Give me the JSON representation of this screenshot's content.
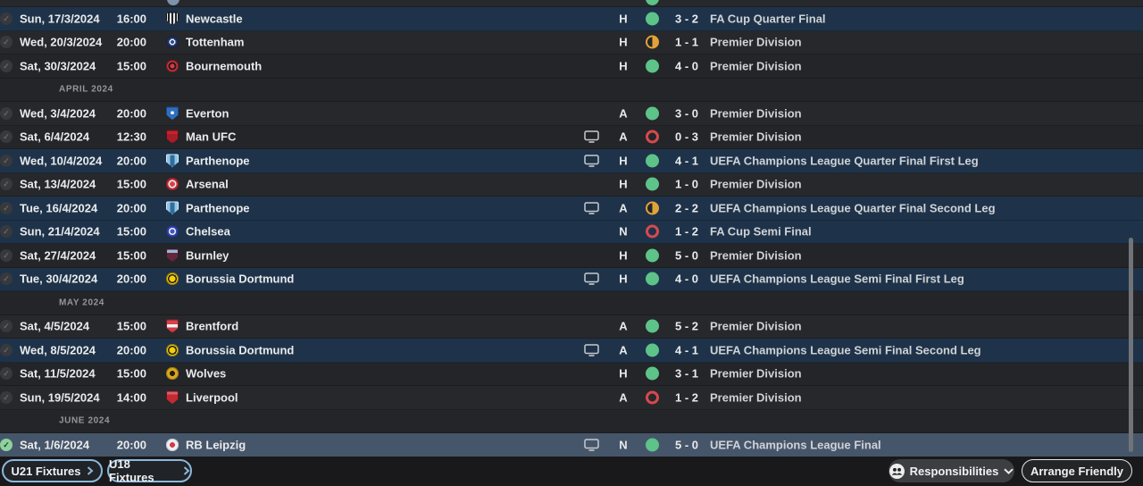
{
  "colors": {
    "win": "#5dc389",
    "draw": "#e2a23b",
    "loss": "#d6494f",
    "highlight_row": "#1e3349",
    "selected_row": "#46566a",
    "accent_blue": "#8cb8da"
  },
  "icons": {
    "check": "✓"
  },
  "fixtures": {
    "rows": [
      {
        "date": "Sun, 17/3/2024",
        "time": "16:00",
        "team": "Newcastle",
        "tv": false,
        "venue": "H",
        "result": "win",
        "score": "3 - 2",
        "competition": "FA Cup Quarter Final",
        "highlight": true,
        "selected": false,
        "check": "grey",
        "badge": {
          "shape": "shield",
          "bg": "repeating-linear-gradient(90deg,#e6e8ea 0 2px,#202226 2px 4px)",
          "border": "#0e0f11"
        }
      },
      {
        "date": "Wed, 20/3/2024",
        "time": "20:00",
        "team": "Tottenham",
        "tv": false,
        "venue": "H",
        "result": "draw",
        "score": "1 - 1",
        "competition": "Premier Division",
        "highlight": false,
        "selected": false,
        "check": "grey",
        "badge": {
          "shape": "circle",
          "bg": "radial-gradient(circle,#2b4fa0 0 2px,#e9edf2 2px 3.5px,#20315e 3.5px)",
          "border": "#16213d"
        }
      },
      {
        "date": "Sat, 30/3/2024",
        "time": "15:00",
        "team": "Bournemouth",
        "tv": false,
        "venue": "H",
        "result": "win",
        "score": "4 - 0",
        "competition": "Premier Division",
        "highlight": false,
        "selected": false,
        "check": "grey",
        "badge": {
          "shape": "circle",
          "bg": "radial-gradient(circle,#d23c44 0 2.5px,#26191c 2.5px 4.5px,#cb3840 4.5px)",
          "border": "#6e1319"
        }
      },
      {
        "section": "APRIL 2024"
      },
      {
        "date": "Wed, 3/4/2024",
        "time": "20:00",
        "team": "Everton",
        "tv": false,
        "venue": "A",
        "result": "win",
        "score": "3 - 0",
        "competition": "Premier Division",
        "highlight": false,
        "selected": false,
        "check": "grey",
        "badge": {
          "shape": "shield",
          "bg": "radial-gradient(circle at 50% 45%,#eef1f4 0 2px,#2e6fc0 2px)",
          "border": "#1c4a8a"
        }
      },
      {
        "date": "Sat, 6/4/2024",
        "time": "12:30",
        "team": "Man UFC",
        "tv": true,
        "venue": "A",
        "result": "loss",
        "score": "0 - 3",
        "competition": "Premier Division",
        "highlight": false,
        "selected": false,
        "check": "grey",
        "badge": {
          "shape": "shield",
          "bg": "linear-gradient(180deg,#c3242f 0 30%,#a81d28 30%)",
          "border": "#5c0d14"
        }
      },
      {
        "date": "Wed, 10/4/2024",
        "time": "20:00",
        "team": "Parthenope",
        "tv": true,
        "venue": "H",
        "result": "win",
        "score": "4 - 1",
        "competition": "UEFA Champions League Quarter Final First Leg",
        "highlight": true,
        "selected": false,
        "check": "grey",
        "badge": {
          "shape": "shield",
          "bg": "linear-gradient(90deg,#8fc6e8 0 32%,#2f6e9e 32% 68%,#8fc6e8 68%)",
          "border": "#dcebf5"
        }
      },
      {
        "date": "Sat, 13/4/2024",
        "time": "15:00",
        "team": "Arsenal",
        "tv": false,
        "venue": "H",
        "result": "win",
        "score": "1 - 0",
        "competition": "Premier Division",
        "highlight": false,
        "selected": false,
        "check": "grey",
        "badge": {
          "shape": "circle",
          "bg": "radial-gradient(circle,#d8434b 0 3px,#eef0f2 3px 4.5px,#c2333c 4.5px)",
          "border": "#8c1f26"
        }
      },
      {
        "date": "Tue, 16/4/2024",
        "time": "20:00",
        "team": "Parthenope",
        "tv": true,
        "venue": "A",
        "result": "draw",
        "score": "2 - 2",
        "competition": "UEFA Champions League Quarter Final Second Leg",
        "highlight": true,
        "selected": false,
        "check": "grey",
        "badge": {
          "shape": "shield",
          "bg": "linear-gradient(90deg,#8fc6e8 0 32%,#2f6e9e 32% 68%,#8fc6e8 68%)",
          "border": "#dcebf5"
        }
      },
      {
        "date": "Sun, 21/4/2024",
        "time": "15:00",
        "team": "Chelsea",
        "tv": false,
        "venue": "N",
        "result": "loss",
        "score": "1 - 2",
        "competition": "FA Cup Semi Final",
        "highlight": true,
        "selected": false,
        "check": "grey",
        "badge": {
          "shape": "circle",
          "bg": "radial-gradient(circle,#4257c4 0 2.5px,#e6eaf4 2.5px 4px,#3243a8 4px)",
          "border": "#222e74"
        }
      },
      {
        "date": "Sat, 27/4/2024",
        "time": "15:00",
        "team": "Burnley",
        "tv": false,
        "venue": "H",
        "result": "win",
        "score": "5 - 0",
        "competition": "Premier Division",
        "highlight": false,
        "selected": false,
        "check": "grey",
        "badge": {
          "shape": "shield",
          "bg": "linear-gradient(180deg,#9db6d8 0 30%,#63263c 30%)",
          "border": "#3c1626"
        }
      },
      {
        "date": "Tue, 30/4/2024",
        "time": "20:00",
        "team": "Borussia Dortmund",
        "tv": true,
        "venue": "H",
        "result": "win",
        "score": "4 - 0",
        "competition": "UEFA Champions League Semi Final First Leg",
        "highlight": true,
        "selected": false,
        "check": "grey",
        "badge": {
          "shape": "circle",
          "bg": "radial-gradient(circle,#f5ce08 0 3.5px,#1a1c1e 3.5px 5px,#f5ce08 5px)",
          "border": "#8a7403"
        }
      },
      {
        "section": "MAY 2024"
      },
      {
        "date": "Sat, 4/5/2024",
        "time": "15:00",
        "team": "Brentford",
        "tv": false,
        "venue": "A",
        "result": "win",
        "score": "5 - 2",
        "competition": "Premier Division",
        "highlight": false,
        "selected": false,
        "check": "grey",
        "badge": {
          "shape": "shield",
          "bg": "linear-gradient(180deg,#d8414b 0 35%,#eef0f2 35% 60%,#cf3a44 60%)",
          "border": "#7e1a22"
        }
      },
      {
        "date": "Wed, 8/5/2024",
        "time": "20:00",
        "team": "Borussia Dortmund",
        "tv": true,
        "venue": "A",
        "result": "win",
        "score": "4 - 1",
        "competition": "UEFA Champions League Semi Final Second Leg",
        "highlight": true,
        "selected": false,
        "check": "grey",
        "badge": {
          "shape": "circle",
          "bg": "radial-gradient(circle,#f5ce08 0 3.5px,#1a1c1e 3.5px 5px,#f5ce08 5px)",
          "border": "#8a7403"
        }
      },
      {
        "date": "Sat, 11/5/2024",
        "time": "15:00",
        "team": "Wolves",
        "tv": false,
        "venue": "H",
        "result": "win",
        "score": "3 - 1",
        "competition": "Premier Division",
        "highlight": false,
        "selected": false,
        "check": "grey",
        "badge": {
          "shape": "circle",
          "bg": "radial-gradient(circle,#241f10 0 3px,#d9a81e 3px)",
          "border": "#9c7712"
        }
      },
      {
        "date": "Sun, 19/5/2024",
        "time": "14:00",
        "team": "Liverpool",
        "tv": false,
        "venue": "A",
        "result": "loss",
        "score": "1 - 2",
        "competition": "Premier Division",
        "highlight": false,
        "selected": false,
        "check": "grey",
        "badge": {
          "shape": "shield",
          "bg": "linear-gradient(180deg,#d5626a 0 25%,#c22b34 25%)",
          "border": "#701219"
        }
      },
      {
        "section": "JUNE 2024"
      },
      {
        "date": "Sat, 1/6/2024",
        "time": "20:00",
        "team": "RB Leipzig",
        "tv": true,
        "venue": "N",
        "result": "win",
        "score": "5 - 0",
        "competition": "UEFA Champions League Final",
        "highlight": true,
        "selected": true,
        "check": "green",
        "badge": {
          "shape": "circle",
          "bg": "radial-gradient(circle,#d5394a 0 3px,#edeff1 3px)",
          "border": "#c8ccd0"
        }
      }
    ]
  },
  "footer": {
    "u21": {
      "label": "U21 Fixtures"
    },
    "u18": {
      "label": "U18 Fixtures"
    },
    "responsibilities": {
      "label": "Responsibilities"
    },
    "arrange_friendly": {
      "label": "Arrange Friendly"
    }
  }
}
